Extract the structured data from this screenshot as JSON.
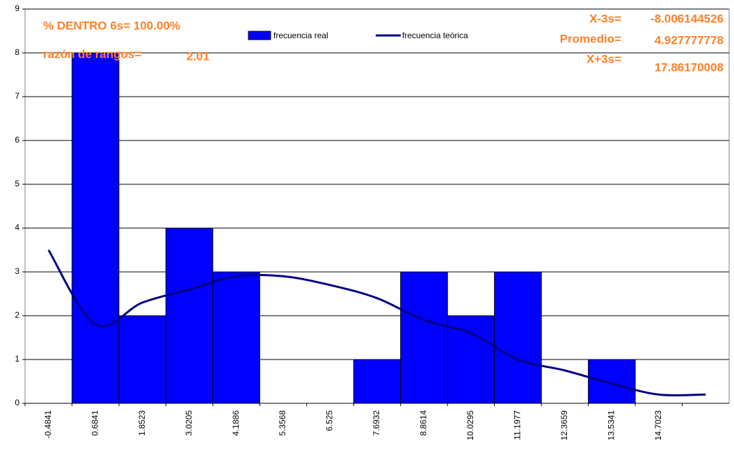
{
  "chart_data": {
    "type": "bar",
    "categories": [
      "-0.4841",
      "0.6841",
      "1.8523",
      "3.0205",
      "4.1886",
      "5.3568",
      "6.525",
      "7.6932",
      "8.8614",
      "10.0295",
      "11.1977",
      "12.3659",
      "13.5341",
      "14.7023",
      null
    ],
    "series": [
      {
        "name": "frecuencia real",
        "type": "bar",
        "color": "#0000ff",
        "values": [
          0,
          8,
          2,
          4,
          3,
          0,
          0,
          1,
          3,
          2,
          3,
          0,
          1,
          0,
          0
        ]
      },
      {
        "name": "frecuencia teórica",
        "type": "line",
        "color": "#000080",
        "values": [
          3.5,
          1.8,
          2.3,
          2.6,
          2.9,
          2.9,
          2.7,
          2.4,
          1.9,
          1.6,
          1.0,
          0.75,
          0.45,
          0.2,
          0.2
        ]
      }
    ],
    "ylim": [
      0,
      9
    ],
    "yticks": [
      0,
      1,
      2,
      3,
      4,
      5,
      6,
      7,
      8,
      9
    ],
    "grid": true,
    "annotations": {
      "dentro": "% DENTRO 6s= 100.00%",
      "razon_label": "razón de rangos=",
      "razon_value": "2.01",
      "x_minus_label": "X-3s=",
      "x_minus_value": "-8.006144526",
      "promedio_label": "Promedio=",
      "promedio_value": "4.927777778",
      "x_plus_label": "X+3s=",
      "x_plus_value": "17.86170008"
    }
  }
}
